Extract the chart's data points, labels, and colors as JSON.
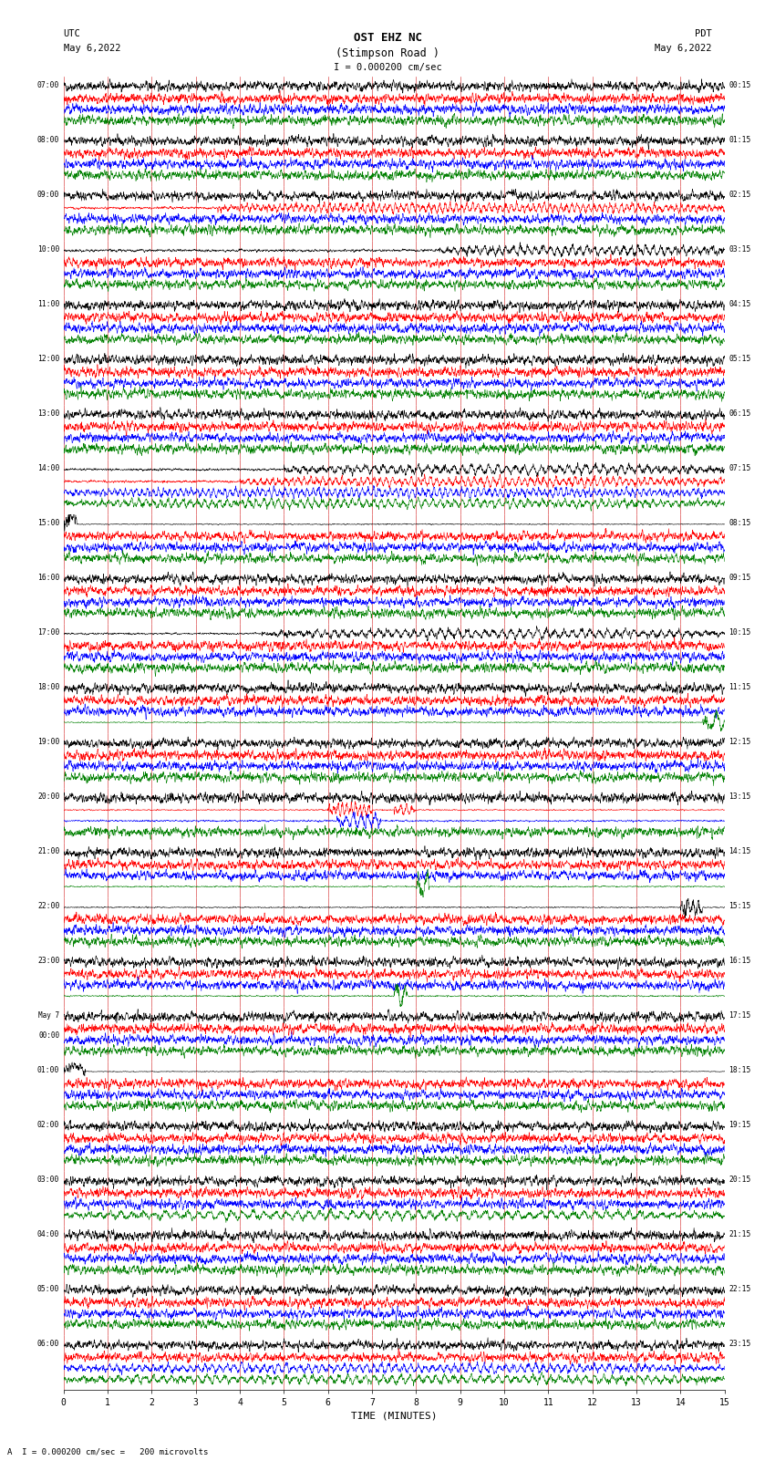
{
  "title_line1": "OST EHZ NC",
  "title_line2": "(Stimpson Road )",
  "scale_label": "I = 0.000200 cm/sec",
  "bottom_label": "A  I = 0.000200 cm/sec =   200 microvolts",
  "left_date_line1": "UTC",
  "left_date_line2": "May 6,2022",
  "right_date_line1": "PDT",
  "right_date_line2": "May 6,2022",
  "xlabel": "TIME (MINUTES)",
  "left_times": [
    "07:00",
    "08:00",
    "09:00",
    "10:00",
    "11:00",
    "12:00",
    "13:00",
    "14:00",
    "15:00",
    "16:00",
    "17:00",
    "18:00",
    "19:00",
    "20:00",
    "21:00",
    "22:00",
    "23:00",
    "May 7\n00:00",
    "01:00",
    "02:00",
    "03:00",
    "04:00",
    "05:00",
    "06:00"
  ],
  "right_times": [
    "00:15",
    "01:15",
    "02:15",
    "03:15",
    "04:15",
    "05:15",
    "06:15",
    "07:15",
    "08:15",
    "09:15",
    "10:15",
    "11:15",
    "12:15",
    "13:15",
    "14:15",
    "15:15",
    "16:15",
    "17:15",
    "18:15",
    "19:15",
    "20:15",
    "21:15",
    "22:15",
    "23:15"
  ],
  "n_rows": 24,
  "traces_per_row": 4,
  "colors": [
    "black",
    "red",
    "blue",
    "green"
  ],
  "bg_color": "white",
  "grid_color": "#888888",
  "figsize": [
    8.5,
    16.13
  ],
  "dpi": 100,
  "xmin": 0,
  "xmax": 15,
  "xticks": [
    0,
    1,
    2,
    3,
    4,
    5,
    6,
    7,
    8,
    9,
    10,
    11,
    12,
    13,
    14,
    15
  ]
}
